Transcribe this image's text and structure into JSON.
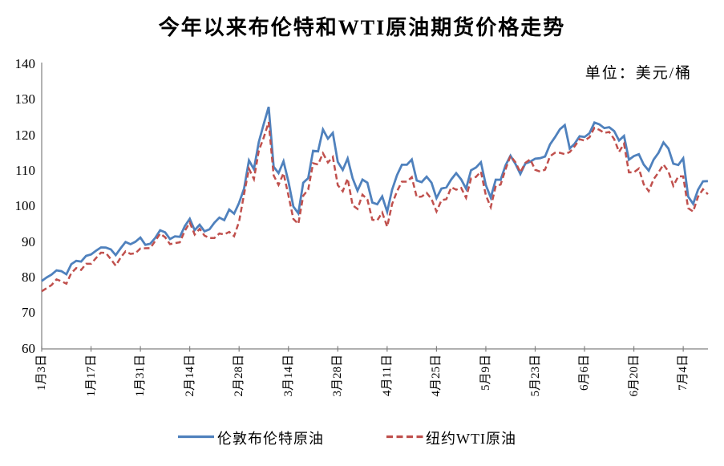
{
  "title": "今年以来布伦特和WTI原油期货价格走势",
  "unit_label": "单位：美元/桶",
  "legend": [
    {
      "label": "伦敦布伦特原油",
      "color": "#4F81BD",
      "style": "solid"
    },
    {
      "label": "纽约WTI原油",
      "color": "#C0504D",
      "style": "dashed"
    }
  ],
  "axis_color": "#808080",
  "chart_data": {
    "type": "line",
    "title": "今年以来布伦特和WTI原油期货价格走势",
    "unit": "美元/桶",
    "grid": false,
    "legend_position": "bottom",
    "y_axis": {
      "min": 60,
      "max": 140,
      "step": 10,
      "ticks": [
        60,
        70,
        80,
        90,
        100,
        110,
        120,
        130,
        140
      ]
    },
    "x_tick_labels": [
      "1月3日",
      "1月17日",
      "1月31日",
      "2月14日",
      "2月28日",
      "3月14日",
      "3月28日",
      "4月11日",
      "4月25日",
      "5月9日",
      "5月23日",
      "6月6日",
      "6月20日",
      "7月4日"
    ],
    "x_tick_indices": [
      0,
      10,
      20,
      30,
      40,
      50,
      60,
      70,
      80,
      90,
      100,
      110,
      120,
      130
    ],
    "series": [
      {
        "name": "伦敦布伦特原油",
        "color": "#4F81BD",
        "dash": "solid",
        "values": [
          78.98,
          80.0,
          80.8,
          81.99,
          81.75,
          80.87,
          83.72,
          84.67,
          84.47,
          86.06,
          86.48,
          87.51,
          88.44,
          88.38,
          87.89,
          86.27,
          88.2,
          89.96,
          89.34,
          90.03,
          91.21,
          89.16,
          89.47,
          91.11,
          93.27,
          92.69,
          90.78,
          91.55,
          91.41,
          94.44,
          96.48,
          93.28,
          94.81,
          92.97,
          93.54,
          95.39,
          96.84,
          96.1,
          99.08,
          97.93,
          100.99,
          104.97,
          112.93,
          110.46,
          118.11,
          123.21,
          127.98,
          111.14,
          109.33,
          112.67,
          106.9,
          99.91,
          98.02,
          106.64,
          107.93,
          115.62,
          115.48,
          121.6,
          119.03,
          120.65,
          112.48,
          110.23,
          113.45,
          107.91,
          104.39,
          107.53,
          106.64,
          101.07,
          100.58,
          102.78,
          98.48,
          104.64,
          108.78,
          111.7,
          111.7,
          113.16,
          107.25,
          106.8,
          108.33,
          106.65,
          102.32,
          104.99,
          105.32,
          107.59,
          109.34,
          107.58,
          104.97,
          110.14,
          110.9,
          112.39,
          105.94,
          102.46,
          107.51,
          107.45,
          111.55,
          114.24,
          111.93,
          109.11,
          112.04,
          112.55,
          113.42,
          113.56,
          114.03,
          117.4,
          119.43,
          121.67,
          122.84,
          116.29,
          117.61,
          119.72,
          119.51,
          120.57,
          123.58,
          123.07,
          122.01,
          122.27,
          121.17,
          118.51,
          119.81,
          113.12,
          114.13,
          114.65,
          111.74,
          110.05,
          113.12,
          115.09,
          117.98,
          116.26,
          112.0,
          111.63,
          113.5,
          102.77,
          100.69,
          104.65,
          107.02,
          107.1
        ]
      },
      {
        "name": "纽约WTI原油",
        "color": "#C0504D",
        "dash": "dashed",
        "values": [
          76.08,
          76.99,
          77.85,
          79.46,
          78.9,
          78.23,
          81.22,
          82.64,
          82.12,
          83.82,
          83.82,
          85.43,
          86.96,
          86.9,
          85.14,
          83.31,
          85.6,
          87.35,
          86.61,
          86.82,
          88.15,
          88.2,
          88.26,
          90.27,
          92.31,
          91.32,
          89.36,
          89.66,
          89.88,
          93.1,
          95.46,
          92.07,
          93.66,
          91.76,
          91.07,
          91.07,
          92.35,
          92.1,
          92.81,
          91.59,
          95.72,
          103.41,
          110.6,
          107.67,
          115.68,
          119.4,
          123.7,
          108.7,
          106.02,
          109.33,
          103.01,
          96.44,
          95.04,
          102.98,
          104.7,
          112.12,
          111.76,
          114.93,
          112.34,
          113.9,
          105.96,
          104.24,
          107.82,
          100.28,
          99.27,
          103.28,
          101.96,
          96.23,
          96.03,
          98.26,
          94.29,
          100.6,
          104.25,
          106.95,
          106.95,
          108.21,
          102.56,
          102.75,
          103.79,
          102.07,
          98.54,
          101.7,
          102.02,
          105.36,
          104.69,
          105.17,
          102.41,
          107.81,
          108.26,
          109.77,
          103.09,
          99.76,
          105.71,
          106.13,
          110.49,
          114.2,
          112.4,
          109.59,
          112.21,
          113.23,
          110.29,
          109.77,
          110.33,
          114.09,
          115.07,
          115.07,
          114.67,
          115.26,
          116.87,
          118.87,
          118.5,
          119.41,
          122.11,
          121.51,
          120.67,
          120.93,
          118.93,
          115.31,
          117.59,
          109.56,
          109.56,
          110.65,
          106.19,
          104.27,
          107.62,
          109.57,
          111.76,
          109.78,
          105.76,
          108.43,
          108.43,
          99.5,
          98.53,
          102.73,
          104.79,
          103.41
        ]
      }
    ]
  }
}
